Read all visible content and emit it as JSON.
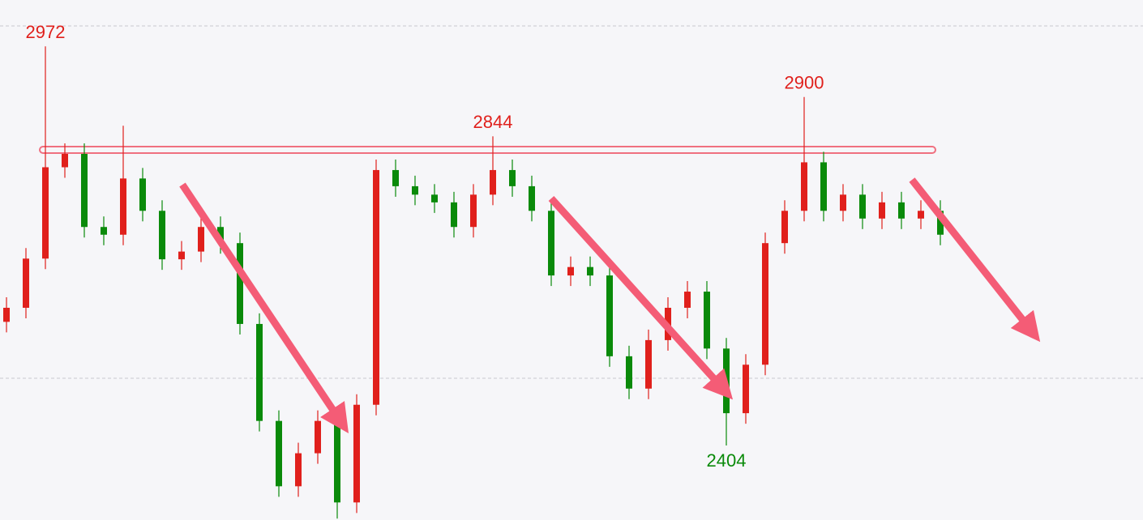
{
  "chart_data": {
    "type": "candlestick",
    "open": [
      2580,
      2600,
      2670,
      2800,
      2819,
      2715,
      2704,
      2784,
      2738,
      2669,
      2680,
      2715,
      2692,
      2577,
      2439,
      2346,
      2393,
      2439,
      2323,
      2462,
      2796,
      2773,
      2761,
      2750,
      2715,
      2761,
      2796,
      2773,
      2738,
      2646,
      2658,
      2646,
      2531,
      2485,
      2554,
      2600,
      2623,
      2542,
      2450,
      2519,
      2692,
      2738,
      2807,
      2738,
      2761,
      2727,
      2750,
      2727,
      2738
    ],
    "high": [
      2615,
      2685,
      2972,
      2834,
      2834,
      2730,
      2859,
      2799,
      2753,
      2695,
      2730,
      2730,
      2707,
      2592,
      2454,
      2408,
      2454,
      2454,
      2477,
      2811,
      2811,
      2788,
      2776,
      2765,
      2776,
      2844,
      2811,
      2788,
      2753,
      2673,
      2673,
      2661,
      2546,
      2569,
      2615,
      2638,
      2638,
      2557,
      2534,
      2707,
      2753,
      2900,
      2822,
      2776,
      2776,
      2765,
      2765,
      2753,
      2753
    ],
    "low": [
      2565,
      2585,
      2655,
      2785,
      2700,
      2689,
      2689,
      2723,
      2654,
      2654,
      2665,
      2677,
      2562,
      2424,
      2331,
      2331,
      2378,
      2300,
      2308,
      2447,
      2758,
      2746,
      2735,
      2700,
      2700,
      2746,
      2758,
      2723,
      2631,
      2631,
      2631,
      2516,
      2470,
      2470,
      2539,
      2585,
      2527,
      2404,
      2435,
      2504,
      2677,
      2723,
      2723,
      2723,
      2712,
      2712,
      2712,
      2712,
      2689
    ],
    "close": [
      2600,
      2670,
      2800,
      2819,
      2715,
      2704,
      2784,
      2738,
      2669,
      2680,
      2715,
      2692,
      2577,
      2439,
      2346,
      2393,
      2439,
      2323,
      2462,
      2796,
      2773,
      2761,
      2750,
      2715,
      2761,
      2796,
      2773,
      2738,
      2646,
      2658,
      2646,
      2531,
      2485,
      2554,
      2600,
      2623,
      2542,
      2450,
      2519,
      2692,
      2738,
      2807,
      2738,
      2761,
      2727,
      2750,
      2727,
      2738,
      2704
    ],
    "up_color": "#e0201c",
    "down_color": "#0a8a0a",
    "annotations": [
      2972,
      2844,
      2900,
      2404
    ],
    "ylim": [
      2298,
      3038
    ]
  }
}
